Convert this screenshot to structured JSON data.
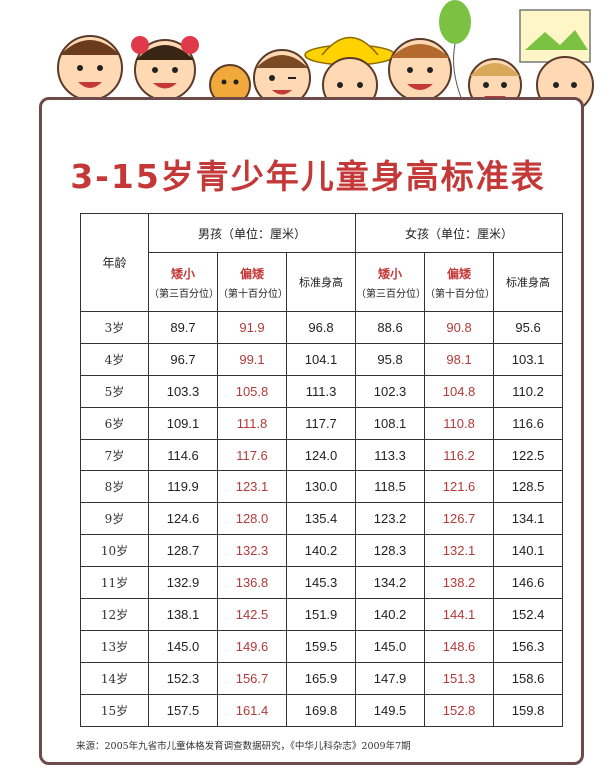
{
  "title": "3-15岁青少年儿童身高标准表",
  "headers": {
    "age": "年龄",
    "boys_group": "男孩（单位：厘米）",
    "girls_group": "女孩（单位：厘米）",
    "short_label": "矮小",
    "short_pct": "（第三百分位）",
    "lowish_label": "偏矮",
    "lowish_pct": "（第十百分位）",
    "standard_label": "标准身高"
  },
  "rows": [
    {
      "age": "3岁",
      "b_short": "89.7",
      "b_low": "91.9",
      "b_std": "96.8",
      "g_short": "88.6",
      "g_low": "90.8",
      "g_std": "95.6"
    },
    {
      "age": "4岁",
      "b_short": "96.7",
      "b_low": "99.1",
      "b_std": "104.1",
      "g_short": "95.8",
      "g_low": "98.1",
      "g_std": "103.1"
    },
    {
      "age": "5岁",
      "b_short": "103.3",
      "b_low": "105.8",
      "b_std": "111.3",
      "g_short": "102.3",
      "g_low": "104.8",
      "g_std": "110.2"
    },
    {
      "age": "6岁",
      "b_short": "109.1",
      "b_low": "111.8",
      "b_std": "117.7",
      "g_short": "108.1",
      "g_low": "110.8",
      "g_std": "116.6"
    },
    {
      "age": "7岁",
      "b_short": "114.6",
      "b_low": "117.6",
      "b_std": "124.0",
      "g_short": "113.3",
      "g_low": "116.2",
      "g_std": "122.5"
    },
    {
      "age": "8岁",
      "b_short": "119.9",
      "b_low": "123.1",
      "b_std": "130.0",
      "g_short": "118.5",
      "g_low": "121.6",
      "g_std": "128.5"
    },
    {
      "age": "9岁",
      "b_short": "124.6",
      "b_low": "128.0",
      "b_std": "135.4",
      "g_short": "123.2",
      "g_low": "126.7",
      "g_std": "134.1"
    },
    {
      "age": "10岁",
      "b_short": "128.7",
      "b_low": "132.3",
      "b_std": "140.2",
      "g_short": "128.3",
      "g_low": "132.1",
      "g_std": "140.1"
    },
    {
      "age": "11岁",
      "b_short": "132.9",
      "b_low": "136.8",
      "b_std": "145.3",
      "g_short": "134.2",
      "g_low": "138.2",
      "g_std": "146.6"
    },
    {
      "age": "12岁",
      "b_short": "138.1",
      "b_low": "142.5",
      "b_std": "151.9",
      "g_short": "140.2",
      "g_low": "144.1",
      "g_std": "152.4"
    },
    {
      "age": "13岁",
      "b_short": "145.0",
      "b_low": "149.6",
      "b_std": "159.5",
      "g_short": "145.0",
      "g_low": "148.6",
      "g_std": "156.3"
    },
    {
      "age": "14岁",
      "b_short": "152.3",
      "b_low": "156.7",
      "b_std": "165.9",
      "g_short": "147.9",
      "g_low": "151.3",
      "g_std": "158.6"
    },
    {
      "age": "15岁",
      "b_short": "157.5",
      "b_low": "161.4",
      "b_std": "169.8",
      "g_short": "149.5",
      "g_low": "152.8",
      "g_std": "159.8"
    }
  ],
  "source": "来源：2005年九省市儿童体格发育调查数据研究，《中华儿科杂志》2009年7期",
  "colors": {
    "title": "#c43838",
    "border": "#6e4a4a",
    "highlight": "#b23a3a"
  }
}
